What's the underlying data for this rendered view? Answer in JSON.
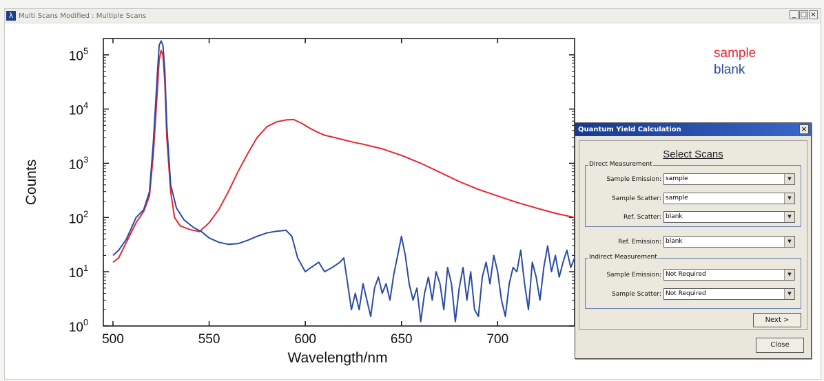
{
  "window": {
    "icon_glyph": "λ",
    "title": "Multi Scans Modified : Multiple Scans",
    "controls": [
      "_",
      "□",
      "×"
    ]
  },
  "chart_data": {
    "type": "line",
    "xlabel": "Wavelength/nm",
    "ylabel": "Counts",
    "xlim": [
      495,
      740
    ],
    "ylim": [
      1,
      200000
    ],
    "yscale": "log",
    "x_ticks": [
      500,
      550,
      600,
      650,
      700
    ],
    "y_ticks": [
      {
        "base": "10",
        "exp": "0"
      },
      {
        "base": "10",
        "exp": "1"
      },
      {
        "base": "10",
        "exp": "2"
      },
      {
        "base": "10",
        "exp": "3"
      },
      {
        "base": "10",
        "exp": "4"
      },
      {
        "base": "10",
        "exp": "5"
      }
    ],
    "legend_position": "top-right",
    "series": [
      {
        "name": "sample",
        "color": "#e8262d",
        "x": [
          500,
          503,
          507,
          512,
          516,
          519,
          521,
          523,
          524,
          525,
          526,
          527,
          528,
          530,
          532,
          535,
          540,
          545,
          550,
          555,
          560,
          565,
          570,
          575,
          580,
          585,
          590,
          594,
          598,
          602,
          606,
          610,
          615,
          620,
          625,
          630,
          640,
          650,
          660,
          670,
          680,
          690,
          700,
          710,
          720,
          730,
          740
        ],
        "y": [
          15,
          18,
          35,
          80,
          130,
          250,
          1500,
          20000,
          80000,
          120000,
          100000,
          30000,
          3000,
          300,
          100,
          70,
          60,
          55,
          80,
          140,
          300,
          700,
          1500,
          3000,
          4700,
          5800,
          6300,
          6400,
          5500,
          4500,
          3800,
          3300,
          3000,
          2700,
          2450,
          2250,
          1850,
          1400,
          1000,
          680,
          460,
          330,
          250,
          190,
          150,
          120,
          100
        ]
      },
      {
        "name": "blank",
        "color": "#2a4aa6",
        "x": [
          500,
          503,
          507,
          512,
          516,
          519,
          521,
          523,
          524,
          525,
          526,
          527,
          528,
          530,
          533,
          537,
          542,
          546,
          550,
          555,
          560,
          565,
          570,
          575,
          580,
          585,
          590,
          593,
          596,
          600,
          603,
          607,
          610,
          614,
          618,
          620,
          622,
          624,
          626,
          628,
          630,
          632,
          634,
          636,
          638,
          640,
          642,
          644,
          646,
          648,
          650,
          652,
          654,
          656,
          658,
          660,
          662,
          664,
          666,
          668,
          670,
          672,
          674,
          676,
          678,
          680,
          682,
          684,
          686,
          688,
          690,
          692,
          694,
          696,
          698,
          700,
          702,
          704,
          706,
          708,
          710,
          712,
          714,
          716,
          718,
          720,
          722,
          724,
          726,
          728,
          730,
          732,
          734,
          736,
          738,
          740
        ],
        "y": [
          20,
          25,
          40,
          100,
          140,
          300,
          2500,
          40000,
          150000,
          180000,
          150000,
          50000,
          5000,
          400,
          150,
          90,
          65,
          55,
          42,
          35,
          32,
          33,
          38,
          45,
          52,
          56,
          58,
          45,
          18,
          10,
          12,
          15,
          10,
          12,
          15,
          18,
          6,
          2,
          4,
          2,
          6,
          3,
          1.5,
          5,
          8,
          4,
          6,
          3,
          9,
          20,
          45,
          20,
          6,
          3,
          5,
          1.2,
          4,
          8,
          3,
          10,
          6,
          2,
          12,
          6,
          1.2,
          5,
          12,
          3,
          10,
          2,
          1.5,
          8,
          15,
          6,
          20,
          10,
          3,
          1.5,
          6,
          12,
          10,
          25,
          6,
          2,
          15,
          8,
          3,
          12,
          30,
          10,
          20,
          8,
          15,
          25,
          12,
          18
        ]
      }
    ]
  },
  "dialog": {
    "title": "Quantum Yield Calculation",
    "close_x": "×",
    "heading": "Select Scans",
    "arrow_glyph": "▼",
    "direct_group_label": "Direct Measurement",
    "direct_rows": [
      {
        "label": "Sample Emission:",
        "value": "sample"
      },
      {
        "label": "Sample Scatter:",
        "value": "sample"
      },
      {
        "label": "Ref. Scatter:",
        "value": "blank"
      }
    ],
    "ref_emission": {
      "label": "Ref. Emission:",
      "value": "blank"
    },
    "indirect_group_label": "Indirect Measurement",
    "indirect_rows": [
      {
        "label": "Sample Emission:",
        "value": "Not Required"
      },
      {
        "label": "Sample Scatter:",
        "value": "Not Required"
      }
    ],
    "next_label": "Next >",
    "close_label": "Close"
  }
}
